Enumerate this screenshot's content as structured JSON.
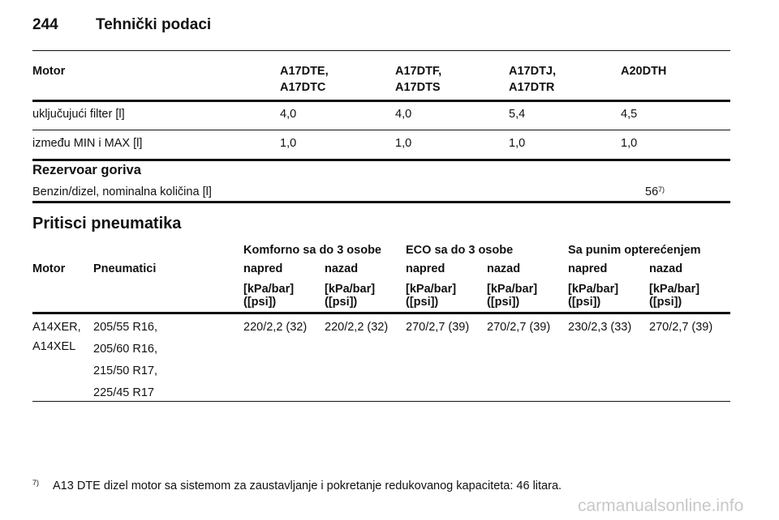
{
  "header": {
    "page_number": "244",
    "title": "Tehnički podaci"
  },
  "engine_table": {
    "columns": [
      [
        "Motor"
      ],
      [
        "A17DTE,",
        "A17DTC"
      ],
      [
        "A17DTF,",
        "A17DTS"
      ],
      [
        "A17DTJ,",
        "A17DTR"
      ],
      [
        "A20DTH"
      ]
    ],
    "rows": [
      [
        "uključujući filter [l]",
        "4,0",
        "4,0",
        "5,4",
        "4,5"
      ],
      [
        "između MIN i MAX [l]",
        "1,0",
        "1,0",
        "1,0",
        "1,0"
      ]
    ]
  },
  "fuel_tank": {
    "title": "Rezervoar goriva",
    "label": "Benzin/dizel, nominalna količina [l]",
    "value": "56",
    "footnote_ref": "7)"
  },
  "tire_pressure": {
    "title": "Pritisci pneumatika",
    "groups": [
      "Komforno sa do 3 osobe",
      "ECO sa do 3 osobe",
      "Sa punim opterećenjem"
    ],
    "columns": [
      "Motor",
      "Pneumatici",
      "napred",
      "nazad",
      "napred",
      "nazad",
      "napred",
      "nazad"
    ],
    "units": [
      [
        "[kPa/bar]",
        "([psi])"
      ],
      [
        "[kPa/bar]",
        "([psi])"
      ],
      [
        "[kPa/bar]",
        "([psi])"
      ],
      [
        "[kPa/bar]",
        "([psi])"
      ],
      [
        "[kPa/bar]",
        "([psi])"
      ],
      [
        "[kPa/bar]",
        "([psi])"
      ]
    ],
    "rows": [
      {
        "motors": [
          "A14XER,",
          "A14XEL"
        ],
        "tires": [
          "205/55 R16,",
          "205/60 R16,",
          "215/50 R17,",
          "225/45 R17"
        ],
        "values": [
          "220/2,2 (32)",
          "220/2,2 (32)",
          "270/2,7 (39)",
          "270/2,7 (39)",
          "230/2,3 (33)",
          "270/2,7 (39)"
        ]
      }
    ]
  },
  "footnote": {
    "marker": "7)",
    "text": "A13 DTE dizel motor sa sistemom za zaustavljanje i pokretanje redukovanog kapaciteta: 46 litara."
  },
  "watermark": "carmanualsonline.info"
}
